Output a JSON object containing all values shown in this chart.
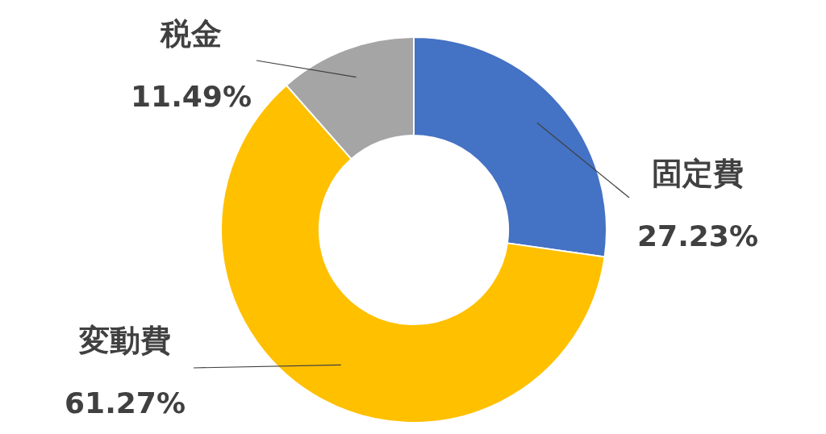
{
  "chart_data": {
    "type": "donut",
    "categories": [
      "固定費",
      "変動費",
      "税金"
    ],
    "values": [
      27.23,
      61.27,
      11.49
    ],
    "colors": [
      "#4472c4",
      "#ffc000",
      "#a5a5a5"
    ],
    "value_labels": [
      "27.23%",
      "61.27%",
      "11.49%"
    ],
    "legend": false
  }
}
